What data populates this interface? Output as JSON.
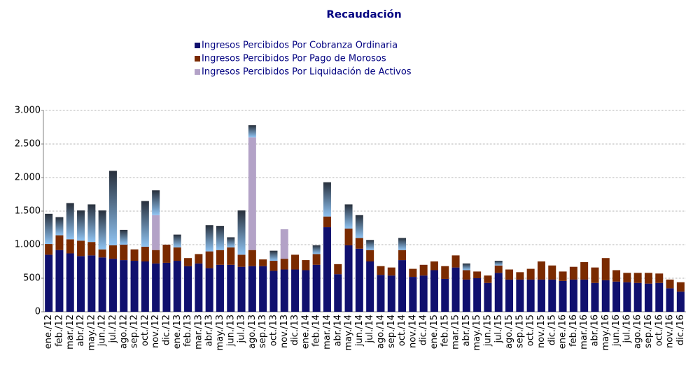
{
  "chart_data": {
    "type": "stacked_bar",
    "title": "Recaudación",
    "categories": [
      "ene./12",
      "feb./12",
      "mar./12",
      "abr./12",
      "may./12",
      "jun./12",
      "jul./12",
      "ago./12",
      "sep./12",
      "oct./12",
      "nov./12",
      "dic./12",
      "ene./13",
      "feb./13",
      "mar./13",
      "abr./13",
      "may./13",
      "jun./13",
      "jul./13",
      "ago./13",
      "sep./13",
      "oct./13",
      "nov./13",
      "dic./13",
      "ene./14",
      "feb./14",
      "mar./14",
      "abr./14",
      "may./14",
      "jun./14",
      "jul./14",
      "ago./14",
      "sep./14",
      "oct./14",
      "nov./14",
      "dic./14",
      "ene./15",
      "feb./15",
      "mar./15",
      "abr./15",
      "may./15",
      "jun./15",
      "jul./15",
      "ago./15",
      "sep./15",
      "oct./15",
      "nov./15",
      "dic./15",
      "ene./16",
      "feb./16",
      "mar./16",
      "abr./16",
      "may./16",
      "jun./16",
      "jul./16",
      "ago./16",
      "sep./16",
      "oct./16",
      "nov./16",
      "dic./16"
    ],
    "series": [
      {
        "name": "Ingresos Percibidos Por Cobranza Ordinaria",
        "color": "#10106e",
        "values": [
          850,
          920,
          870,
          830,
          840,
          810,
          790,
          770,
          760,
          750,
          720,
          730,
          760,
          680,
          720,
          650,
          700,
          700,
          670,
          680,
          680,
          610,
          630,
          630,
          620,
          700,
          1260,
          560,
          990,
          940,
          750,
          550,
          540,
          770,
          520,
          540,
          620,
          490,
          660,
          480,
          500,
          430,
          580,
          480,
          480,
          480,
          480,
          480,
          460,
          480,
          480,
          430,
          470,
          450,
          440,
          430,
          420,
          430,
          350,
          300
        ]
      },
      {
        "name": "Ingresos Percibidos Por Pago de Morosos",
        "color": "#7a2a00",
        "values": [
          160,
          220,
          210,
          230,
          200,
          120,
          200,
          230,
          170,
          220,
          200,
          270,
          200,
          120,
          140,
          250,
          220,
          260,
          180,
          240,
          100,
          150,
          160,
          220,
          150,
          160,
          160,
          150,
          250,
          160,
          170,
          130,
          120,
          150,
          120,
          160,
          130,
          190,
          180,
          140,
          100,
          110,
          110,
          150,
          110,
          160,
          270,
          210,
          140,
          190,
          260,
          230,
          330,
          170,
          140,
          150,
          160,
          140,
          130,
          140
        ]
      },
      {
        "name": "Ingresos Percibidos Por Liquidación de Activos",
        "color": "#b3a2c7",
        "values": [
          0,
          0,
          0,
          0,
          0,
          0,
          0,
          0,
          0,
          0,
          520,
          0,
          0,
          0,
          0,
          0,
          0,
          0,
          0,
          1680,
          0,
          0,
          440,
          0,
          0,
          0,
          0,
          0,
          0,
          0,
          0,
          0,
          0,
          0,
          0,
          0,
          0,
          0,
          0,
          0,
          0,
          0,
          0,
          0,
          0,
          0,
          0,
          0,
          0,
          0,
          0,
          0,
          0,
          0,
          0,
          0,
          0,
          0,
          0,
          0
        ]
      },
      {
        "name": null,
        "color": "#8fc3f2",
        "gradient": true,
        "values": [
          450,
          270,
          540,
          450,
          560,
          580,
          1110,
          220,
          0,
          680,
          370,
          0,
          190,
          0,
          0,
          390,
          360,
          150,
          660,
          180,
          0,
          150,
          0,
          0,
          0,
          130,
          510,
          0,
          360,
          340,
          150,
          0,
          0,
          180,
          0,
          0,
          0,
          0,
          0,
          100,
          0,
          0,
          70,
          0,
          0,
          0,
          0,
          0,
          0,
          0,
          0,
          0,
          0,
          0,
          0,
          0,
          0,
          0,
          0,
          0
        ]
      }
    ],
    "ylim": [
      0,
      3000
    ],
    "yticks": [
      0,
      500,
      {
        "value": 1000,
        "label": "1.000"
      },
      {
        "value": 1500,
        "label": "1.500"
      },
      {
        "value": 2000,
        "label": "2.000"
      },
      {
        "value": 2500,
        "label": "2.500"
      },
      {
        "value": 3000,
        "label": "3.000"
      }
    ],
    "grid": true
  }
}
